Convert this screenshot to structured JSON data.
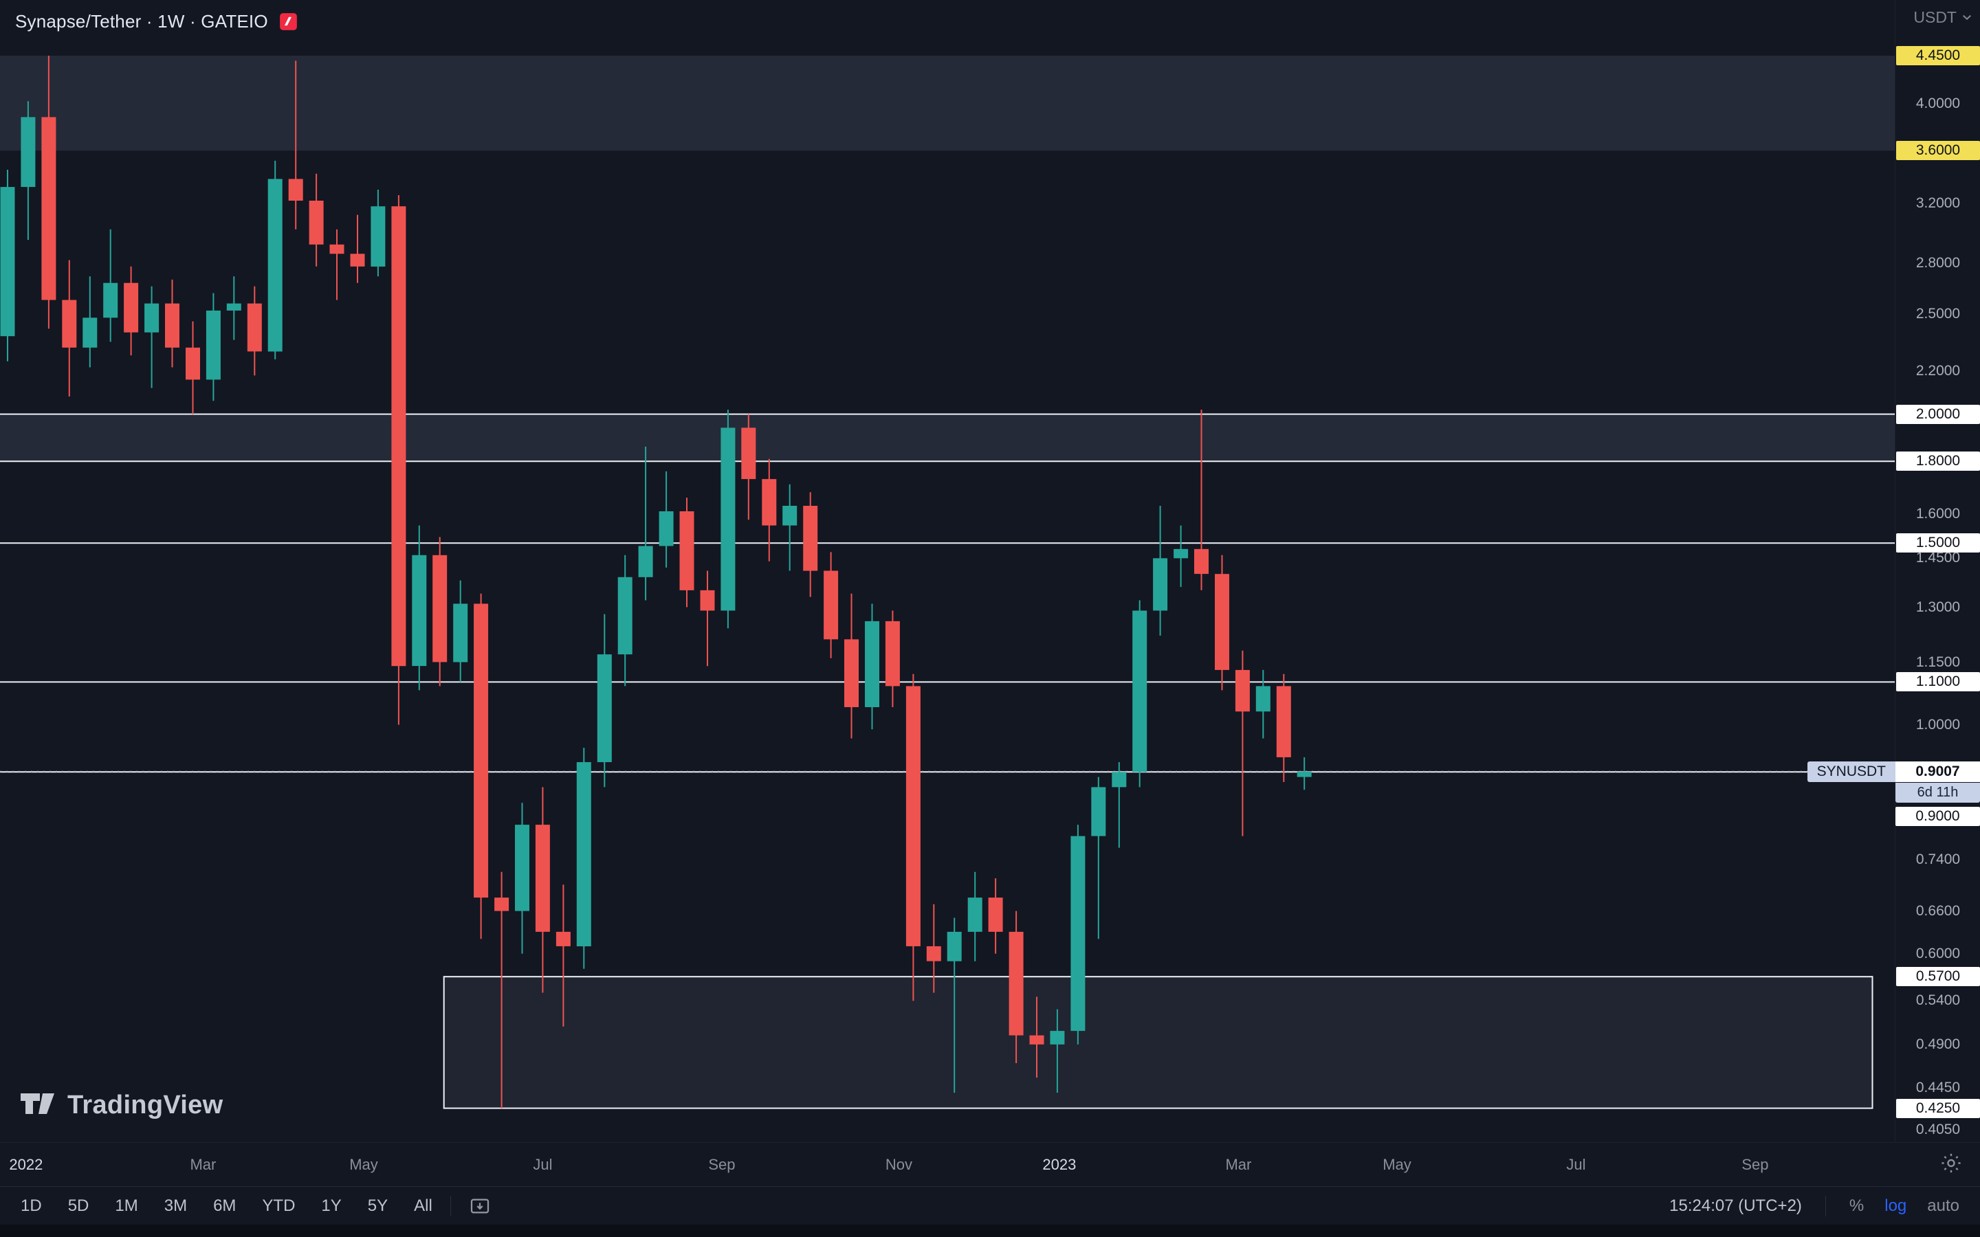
{
  "header": {
    "symbol_title": "Synapse/Tether · 1W · GATEIO",
    "currency_button": "USDT"
  },
  "watermark_text": "TradingView",
  "toolbar": {
    "ranges": [
      "1D",
      "5D",
      "1M",
      "3M",
      "6M",
      "YTD",
      "1Y",
      "5Y",
      "All"
    ],
    "clock": "15:24:07 (UTC+2)",
    "percent_label": "%",
    "log_label": "log",
    "auto_label": "auto",
    "active_scale": "log"
  },
  "price_label_stack": {
    "symbol": "SYNUSDT",
    "price": "0.9007",
    "countdown": "6d 11h",
    "level_label": "0.9000"
  },
  "price_axis_ticks": [
    {
      "label": "4.4500",
      "price": 4.45,
      "style": "yellow"
    },
    {
      "label": "4.0000",
      "price": 4.0,
      "style": "plain"
    },
    {
      "label": "3.6000",
      "price": 3.6,
      "style": "yellow"
    },
    {
      "label": "3.2000",
      "price": 3.2,
      "style": "plain"
    },
    {
      "label": "2.8000",
      "price": 2.8,
      "style": "plain"
    },
    {
      "label": "2.5000",
      "price": 2.5,
      "style": "plain"
    },
    {
      "label": "2.2000",
      "price": 2.2,
      "style": "plain"
    },
    {
      "label": "2.0000",
      "price": 2.0,
      "style": "white"
    },
    {
      "label": "1.8000",
      "price": 1.8,
      "style": "white"
    },
    {
      "label": "1.6000",
      "price": 1.6,
      "style": "plain"
    },
    {
      "label": "1.5000",
      "price": 1.5,
      "style": "white"
    },
    {
      "label": "1.4500",
      "price": 1.45,
      "style": "plain"
    },
    {
      "label": "1.3000",
      "price": 1.3,
      "style": "plain"
    },
    {
      "label": "1.1500",
      "price": 1.15,
      "style": "plain"
    },
    {
      "label": "1.1000",
      "price": 1.1,
      "style": "white"
    },
    {
      "label": "1.0000",
      "price": 1.0,
      "style": "plain"
    },
    {
      "label": "0.7400",
      "price": 0.74,
      "style": "plain"
    },
    {
      "label": "0.6600",
      "price": 0.66,
      "style": "plain"
    },
    {
      "label": "0.6000",
      "price": 0.6,
      "style": "plain"
    },
    {
      "label": "0.5700",
      "price": 0.57,
      "style": "white"
    },
    {
      "label": "0.5400",
      "price": 0.54,
      "style": "plain"
    },
    {
      "label": "0.4900",
      "price": 0.49,
      "style": "plain"
    },
    {
      "label": "0.4450",
      "price": 0.445,
      "style": "plain"
    },
    {
      "label": "0.4250",
      "price": 0.425,
      "style": "white"
    },
    {
      "label": "0.4050",
      "price": 0.405,
      "style": "plain"
    }
  ],
  "time_axis_ticks": [
    {
      "text": "2022",
      "week": 0.9,
      "major": true
    },
    {
      "text": "Mar",
      "week": 9.5,
      "major": false
    },
    {
      "text": "May",
      "week": 17.3,
      "major": false
    },
    {
      "text": "Jul",
      "week": 26.0,
      "major": false
    },
    {
      "text": "Sep",
      "week": 34.7,
      "major": false
    },
    {
      "text": "Nov",
      "week": 43.3,
      "major": false
    },
    {
      "text": "2023",
      "week": 51.1,
      "major": true
    },
    {
      "text": "Mar",
      "week": 59.8,
      "major": false
    },
    {
      "text": "May",
      "week": 67.5,
      "major": false
    },
    {
      "text": "Jul",
      "week": 76.2,
      "major": false
    },
    {
      "text": "Sep",
      "week": 84.9,
      "major": false
    }
  ],
  "chart_data": {
    "type": "candlestick",
    "symbol": "SYNUSDT",
    "title": "Synapse/Tether",
    "interval": "1W",
    "exchange": "GATEIO",
    "scale": "log",
    "visible_price_range": [
      0.405,
      4.45
    ],
    "current_price": 0.9007,
    "bar_close_countdown": "6d 11h",
    "first_candle_week": "2022-01-03",
    "colors": {
      "up": "#26a69a",
      "down": "#ef5350",
      "background": "#131722",
      "level_line": "#eef1f6"
    },
    "levels": [
      2.0,
      1.8,
      1.5,
      1.1,
      0.9
    ],
    "zones": [
      {
        "top": 4.45,
        "bottom": 3.6
      },
      {
        "top": 2.0,
        "bottom": 1.8
      }
    ],
    "range_box": {
      "top": 0.57,
      "bottom": 0.425,
      "week_start": 21.2,
      "week_end": 90.6
    },
    "ohlc_order": [
      "open",
      "high",
      "low",
      "close"
    ],
    "candles": [
      [
        2.38,
        3.45,
        2.25,
        3.32
      ],
      [
        3.32,
        4.02,
        2.95,
        3.88
      ],
      [
        3.88,
        4.45,
        2.42,
        2.58
      ],
      [
        2.58,
        2.82,
        2.08,
        2.32
      ],
      [
        2.32,
        2.72,
        2.22,
        2.48
      ],
      [
        2.48,
        3.02,
        2.35,
        2.68
      ],
      [
        2.68,
        2.78,
        2.28,
        2.4
      ],
      [
        2.4,
        2.66,
        2.12,
        2.56
      ],
      [
        2.56,
        2.7,
        2.22,
        2.32
      ],
      [
        2.32,
        2.46,
        2.0,
        2.16
      ],
      [
        2.16,
        2.62,
        2.06,
        2.52
      ],
      [
        2.52,
        2.72,
        2.36,
        2.56
      ],
      [
        2.56,
        2.66,
        2.18,
        2.3
      ],
      [
        2.3,
        3.52,
        2.26,
        3.38
      ],
      [
        3.38,
        4.4,
        3.02,
        3.22
      ],
      [
        3.22,
        3.42,
        2.78,
        2.92
      ],
      [
        2.92,
        3.02,
        2.58,
        2.86
      ],
      [
        2.86,
        3.12,
        2.68,
        2.78
      ],
      [
        2.78,
        3.3,
        2.72,
        3.18
      ],
      [
        3.18,
        3.26,
        1.0,
        1.14
      ],
      [
        1.14,
        1.56,
        1.08,
        1.46
      ],
      [
        1.46,
        1.52,
        1.09,
        1.15
      ],
      [
        1.15,
        1.38,
        1.1,
        1.31
      ],
      [
        1.31,
        1.34,
        0.62,
        0.68
      ],
      [
        0.68,
        0.72,
        0.425,
        0.66
      ],
      [
        0.66,
        0.84,
        0.6,
        0.8
      ],
      [
        0.8,
        0.87,
        0.55,
        0.63
      ],
      [
        0.63,
        0.7,
        0.51,
        0.61
      ],
      [
        0.61,
        0.95,
        0.58,
        0.92
      ],
      [
        0.92,
        1.28,
        0.87,
        1.17
      ],
      [
        1.17,
        1.46,
        1.09,
        1.39
      ],
      [
        1.39,
        1.86,
        1.32,
        1.49
      ],
      [
        1.49,
        1.76,
        1.42,
        1.61
      ],
      [
        1.61,
        1.66,
        1.3,
        1.35
      ],
      [
        1.35,
        1.41,
        1.14,
        1.29
      ],
      [
        1.29,
        2.02,
        1.24,
        1.94
      ],
      [
        1.94,
        2.0,
        1.58,
        1.73
      ],
      [
        1.73,
        1.81,
        1.44,
        1.56
      ],
      [
        1.56,
        1.71,
        1.41,
        1.63
      ],
      [
        1.63,
        1.68,
        1.33,
        1.41
      ],
      [
        1.41,
        1.47,
        1.16,
        1.21
      ],
      [
        1.21,
        1.34,
        0.97,
        1.04
      ],
      [
        1.04,
        1.31,
        0.99,
        1.26
      ],
      [
        1.26,
        1.29,
        1.04,
        1.09
      ],
      [
        1.09,
        1.12,
        0.54,
        0.61
      ],
      [
        0.61,
        0.67,
        0.55,
        0.59
      ],
      [
        0.59,
        0.65,
        0.44,
        0.63
      ],
      [
        0.63,
        0.72,
        0.59,
        0.68
      ],
      [
        0.68,
        0.71,
        0.6,
        0.63
      ],
      [
        0.63,
        0.66,
        0.47,
        0.5
      ],
      [
        0.5,
        0.545,
        0.455,
        0.49
      ],
      [
        0.49,
        0.53,
        0.44,
        0.505
      ],
      [
        0.505,
        0.8,
        0.49,
        0.78
      ],
      [
        0.78,
        0.89,
        0.62,
        0.87
      ],
      [
        0.87,
        0.92,
        0.76,
        0.9
      ],
      [
        0.9,
        1.32,
        0.87,
        1.29
      ],
      [
        1.29,
        1.63,
        1.22,
        1.45
      ],
      [
        1.45,
        1.56,
        1.36,
        1.48
      ],
      [
        1.48,
        2.02,
        1.35,
        1.4
      ],
      [
        1.4,
        1.46,
        1.08,
        1.13
      ],
      [
        1.13,
        1.18,
        0.78,
        1.03
      ],
      [
        1.03,
        1.13,
        0.97,
        1.09
      ],
      [
        1.09,
        1.12,
        0.88,
        0.93
      ],
      [
        0.89,
        0.93,
        0.865,
        0.9007
      ]
    ]
  }
}
